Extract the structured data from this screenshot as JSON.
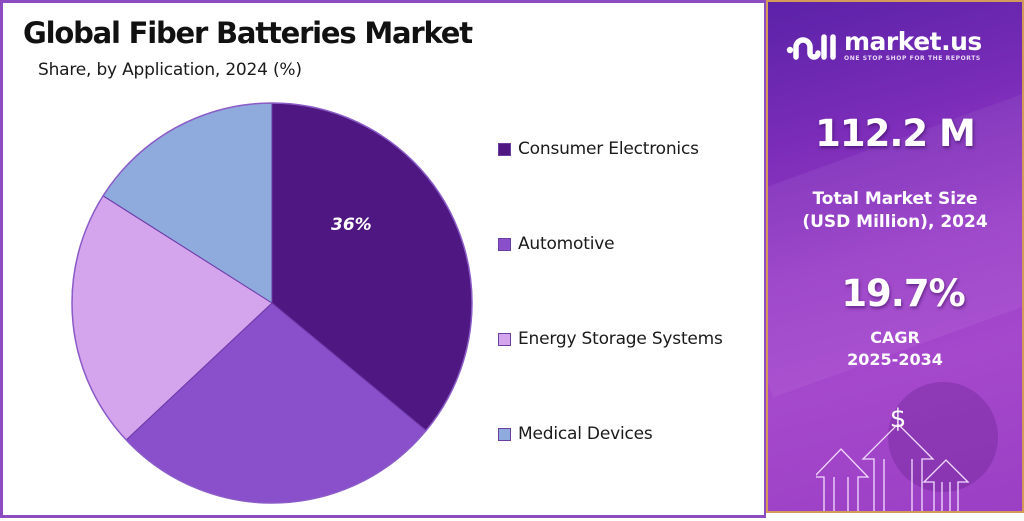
{
  "header": {
    "title": "Global Fiber Batteries Market",
    "subtitle": "Share, by Application, 2024 (%)"
  },
  "chart_data": {
    "type": "pie",
    "title": "Global Fiber Batteries Market",
    "subtitle": "Share, by Application, 2024 (%)",
    "categories": [
      "Consumer Electronics",
      "Automotive",
      "Energy Storage Systems",
      "Medical Devices"
    ],
    "values": [
      36,
      27,
      21,
      16
    ],
    "colors": [
      "#4e1782",
      "#8a4fcb",
      "#d4a4ec",
      "#8faadc"
    ],
    "data_labels": [
      "36%",
      "",
      "",
      ""
    ],
    "start_angle": "top, clockwise",
    "legend_position": "right"
  },
  "pie": {
    "label_0": "36%"
  },
  "legend": {
    "items": [
      {
        "label": "Consumer Electronics",
        "color": "#4e1782"
      },
      {
        "label": "Automotive",
        "color": "#8a4fcb"
      },
      {
        "label": "Energy Storage Systems",
        "color": "#d4a4ec"
      },
      {
        "label": "Medical Devices",
        "color": "#8faadc"
      }
    ]
  },
  "sidebar": {
    "brand": "market.us",
    "tagline": "ONE STOP SHOP FOR THE REPORTS",
    "market_size_value": "112.2 M",
    "market_size_label_line1": "Total Market Size",
    "market_size_label_line2": "(USD Million), 2024",
    "cagr_value": "19.7%",
    "cagr_label_line1": "CAGR",
    "cagr_label_line2": "2025-2034",
    "currency_symbol": "$"
  }
}
